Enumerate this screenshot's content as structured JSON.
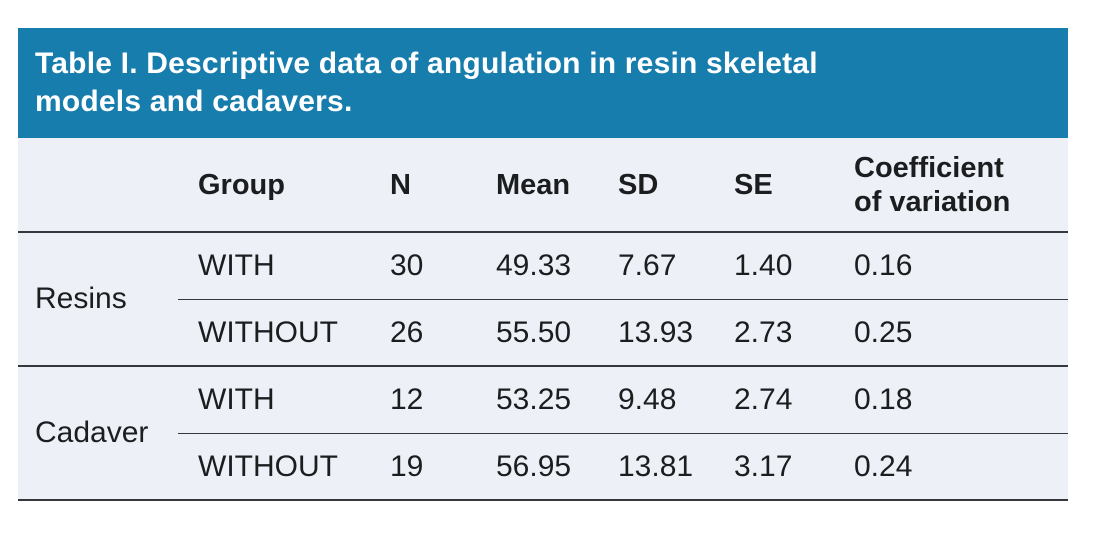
{
  "table": {
    "title": "Table I. Descriptive data of angulation in resin skeletal\nmodels and cadavers.",
    "columns": {
      "group": "Group",
      "n": "N",
      "mean": "Mean",
      "sd": "SD",
      "se": "SE",
      "cv": "Coefficient\nof variation"
    },
    "groups": [
      {
        "label": "Resins",
        "rows": [
          {
            "group": "WITH",
            "n": "30",
            "mean": "49.33",
            "sd": "7.67",
            "se": "1.40",
            "cv": "0.16"
          },
          {
            "group": "WITHOUT",
            "n": "26",
            "mean": "55.50",
            "sd": "13.93",
            "se": "2.73",
            "cv": "0.25"
          }
        ]
      },
      {
        "label": "Cadaver",
        "rows": [
          {
            "group": "WITH",
            "n": "12",
            "mean": "53.25",
            "sd": "9.48",
            "se": "2.74",
            "cv": "0.18"
          },
          {
            "group": "WITHOUT",
            "n": "19",
            "mean": "56.95",
            "sd": "13.81",
            "se": "3.17",
            "cv": "0.24"
          }
        ]
      }
    ]
  },
  "colors": {
    "accent": "#177dac",
    "row_background": "#edf1f7",
    "rule": "#34383c",
    "title_text": "#ffffff",
    "body_text": "#1b1d1f"
  },
  "chart_data": {
    "type": "table",
    "title": "Table I. Descriptive data of angulation in resin skeletal models and cadavers.",
    "columns": [
      "",
      "Group",
      "N",
      "Mean",
      "SD",
      "SE",
      "Coefficient of variation"
    ],
    "rows": [
      [
        "Resins",
        "WITH",
        30,
        49.33,
        7.67,
        1.4,
        0.16
      ],
      [
        "Resins",
        "WITHOUT",
        26,
        55.5,
        13.93,
        2.73,
        0.25
      ],
      [
        "Cadaver",
        "WITH",
        12,
        53.25,
        9.48,
        2.74,
        0.18
      ],
      [
        "Cadaver",
        "WITHOUT",
        19,
        56.95,
        13.81,
        3.17,
        0.24
      ]
    ]
  }
}
